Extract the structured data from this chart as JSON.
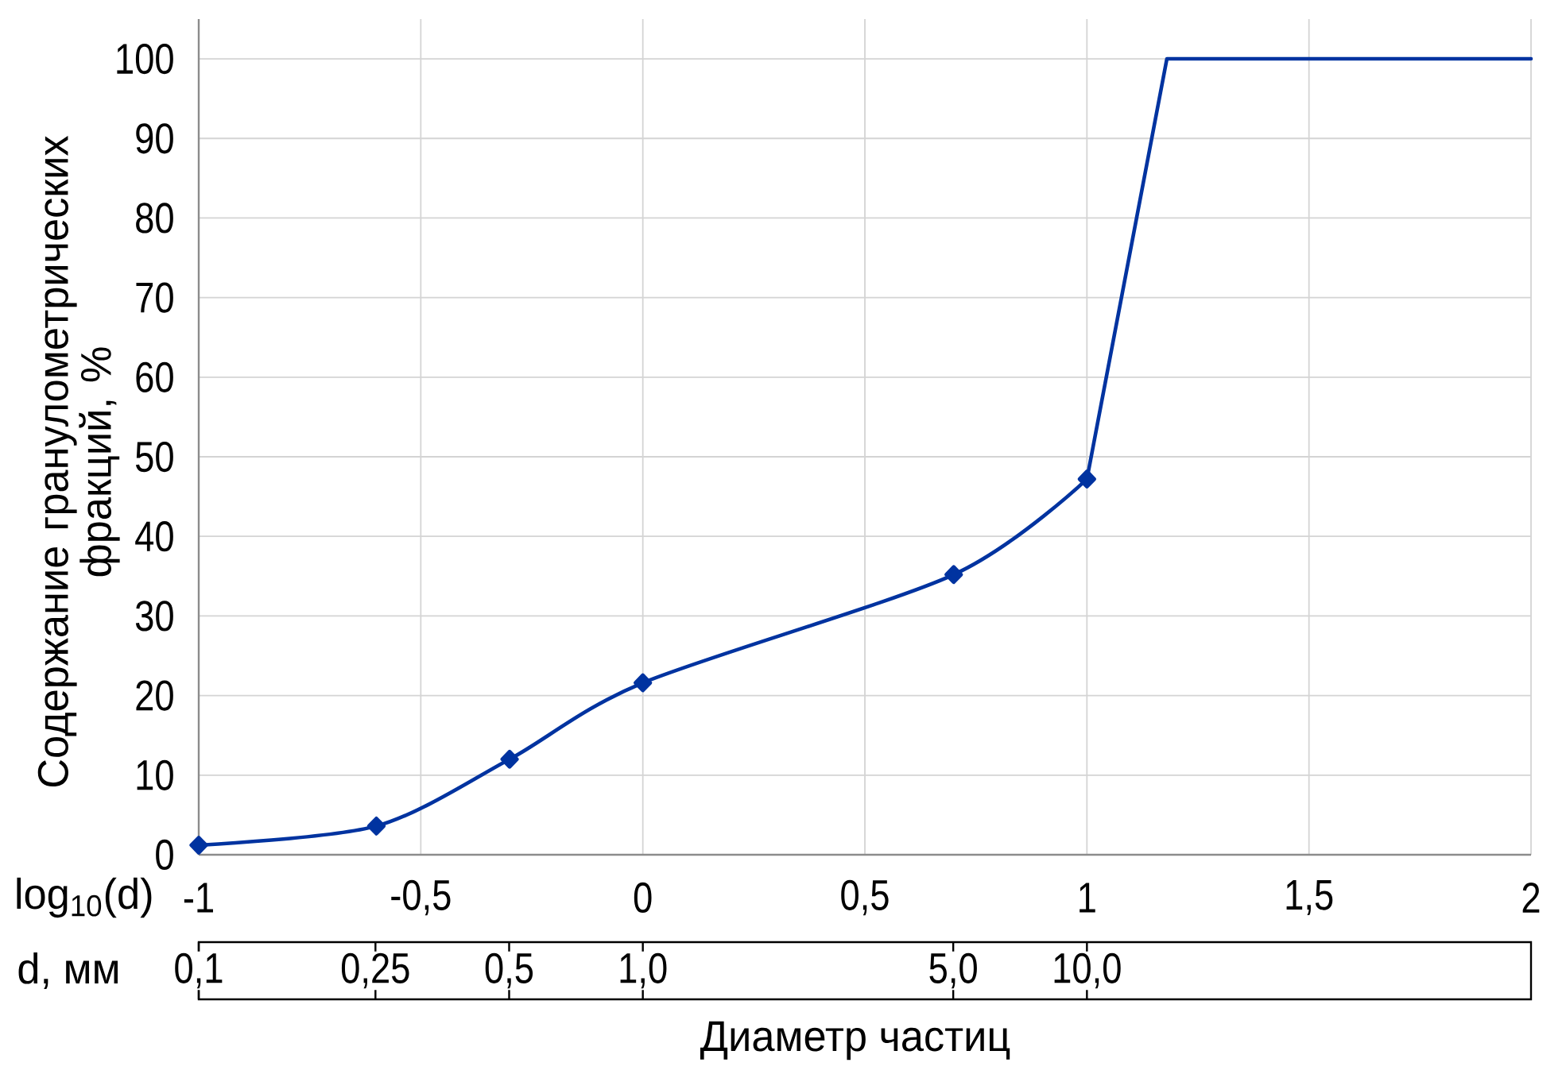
{
  "chart_data": {
    "type": "line",
    "xlabel": "log$_{10}$(d)",
    "ylabel": "Содержание гранулометрических фракций, %",
    "x2label": "d, мм",
    "annotations": [
      "Диаметр частиц"
    ],
    "series": [
      {
        "color": "#0033a0",
        "marker": "diamond",
        "x": [
          -1,
          -0.6,
          -0.3,
          0,
          0.7,
          1
        ],
        "values": [
          1.2,
          3.6,
          12,
          21.6,
          35.2,
          47.2
        ]
      },
      {
        "color": "#0033a0",
        "marker": "none",
        "x": [
          1,
          1.18,
          2
        ],
        "values": [
          47.2,
          100,
          100
        ]
      }
    ],
    "xlim": [
      -1,
      2
    ],
    "xticks": [
      -1,
      {
        "value": -0.5,
        "label": "-0,5"
      },
      0,
      {
        "value": 0.5,
        "label": "0,5"
      },
      1,
      {
        "value": 1.5,
        "label": "1,5"
      },
      2
    ],
    "ylim": [
      0,
      105
    ],
    "yticks": [
      0,
      10,
      20,
      30,
      40,
      50,
      60,
      70,
      80,
      90,
      100
    ],
    "x2lim": [
      0.1,
      100
    ],
    "x2ticks": [
      {
        "value": 0.1,
        "label": "0,1"
      },
      {
        "value": 0.25,
        "label": "0,25"
      },
      {
        "value": 0.5,
        "label": "0,5"
      },
      {
        "value": 1,
        "label": "1,0"
      },
      {
        "value": 5,
        "label": "5,0"
      },
      {
        "value": 10,
        "label": "10,0"
      }
    ],
    "log": "x2",
    "grid": true,
    "line_style": "solid"
  }
}
